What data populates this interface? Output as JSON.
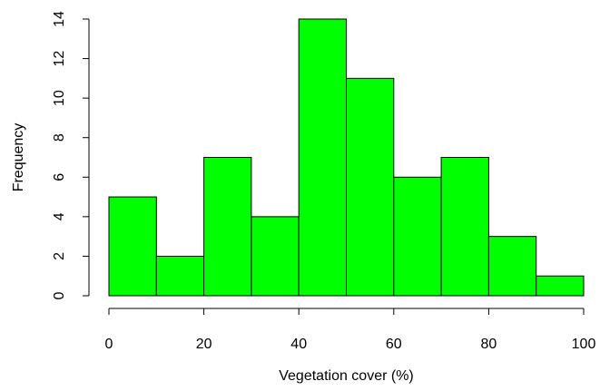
{
  "chart_data": {
    "type": "bar",
    "title": "",
    "xlabel": "Vegetation cover (%)",
    "ylabel": "Frequency",
    "bins": [
      {
        "x0": 0,
        "x1": 10,
        "count": 5
      },
      {
        "x0": 10,
        "x1": 20,
        "count": 2
      },
      {
        "x0": 20,
        "x1": 30,
        "count": 7
      },
      {
        "x0": 30,
        "x1": 40,
        "count": 4
      },
      {
        "x0": 40,
        "x1": 50,
        "count": 14
      },
      {
        "x0": 50,
        "x1": 60,
        "count": 11
      },
      {
        "x0": 60,
        "x1": 70,
        "count": 6
      },
      {
        "x0": 70,
        "x1": 80,
        "count": 7
      },
      {
        "x0": 80,
        "x1": 90,
        "count": 3
      },
      {
        "x0": 90,
        "x1": 100,
        "count": 1
      }
    ],
    "xlim": [
      0,
      100
    ],
    "ylim": [
      0,
      14
    ],
    "x_ticks": [
      "0",
      "20",
      "40",
      "60",
      "80",
      "100"
    ],
    "y_ticks": [
      "0",
      "2",
      "4",
      "6",
      "8",
      "10",
      "12",
      "14"
    ],
    "bar_color": "#00ff00",
    "grid": false,
    "legend": "none"
  }
}
